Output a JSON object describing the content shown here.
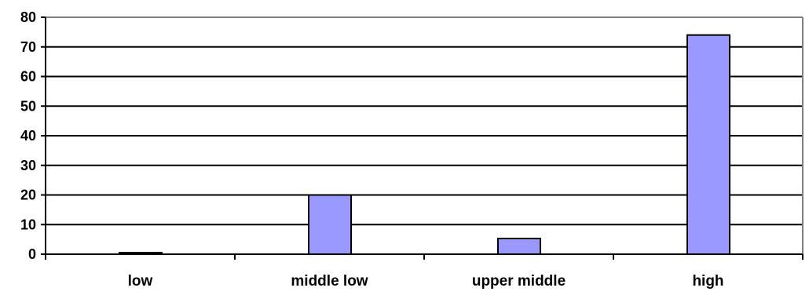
{
  "chart_data": {
    "type": "bar",
    "title": "",
    "xlabel": "",
    "ylabel": "",
    "categories": [
      "low",
      "middle low",
      "upper middle",
      "high"
    ],
    "values": [
      0.5,
      20,
      5.3,
      74
    ],
    "ylim": [
      0,
      80
    ],
    "yticks": [
      0,
      10,
      20,
      30,
      40,
      50,
      60,
      70,
      80
    ],
    "grid": true,
    "legend": "none",
    "colors": {
      "bar_fill": "#9999ff",
      "bar_stroke": "#000000",
      "grid": "#000000",
      "axis": "#808080",
      "background": "#ffffff"
    }
  }
}
